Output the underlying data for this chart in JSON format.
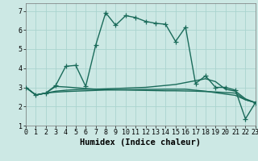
{
  "xlabel": "Humidex (Indice chaleur)",
  "background_color": "#cce8e4",
  "grid_color": "#aad4cf",
  "line_color": "#1a6b5a",
  "x_values": [
    0,
    1,
    2,
    3,
    4,
    5,
    6,
    7,
    8,
    9,
    10,
    11,
    12,
    13,
    14,
    15,
    16,
    17,
    18,
    19,
    20,
    21,
    22,
    23
  ],
  "series": [
    [
      3.0,
      2.6,
      2.7,
      3.1,
      4.1,
      4.15,
      3.05,
      5.2,
      6.9,
      6.25,
      6.75,
      6.65,
      6.45,
      6.35,
      6.3,
      5.4,
      6.15,
      3.2,
      3.6,
      3.0,
      3.0,
      2.85,
      1.35,
      2.2
    ],
    [
      3.0,
      2.6,
      2.7,
      2.8,
      2.85,
      2.88,
      2.9,
      2.9,
      2.92,
      2.94,
      2.96,
      2.98,
      3.0,
      3.05,
      3.1,
      3.15,
      3.25,
      3.35,
      3.45,
      3.3,
      2.9,
      2.8,
      2.4,
      2.2
    ],
    [
      3.0,
      2.6,
      2.7,
      2.75,
      2.78,
      2.8,
      2.82,
      2.84,
      2.86,
      2.87,
      2.88,
      2.88,
      2.89,
      2.89,
      2.9,
      2.9,
      2.9,
      2.85,
      2.8,
      2.72,
      2.65,
      2.58,
      2.35,
      2.2
    ],
    [
      3.0,
      2.6,
      2.7,
      3.05,
      3.02,
      2.98,
      2.94,
      2.9,
      2.88,
      2.87,
      2.86,
      2.85,
      2.84,
      2.83,
      2.82,
      2.82,
      2.81,
      2.8,
      2.78,
      2.76,
      2.73,
      2.7,
      2.35,
      2.2
    ]
  ],
  "xlim": [
    0,
    23
  ],
  "ylim": [
    1.0,
    7.4
  ],
  "yticks": [
    1,
    2,
    3,
    4,
    5,
    6,
    7
  ],
  "xticks": [
    0,
    1,
    2,
    3,
    4,
    5,
    6,
    7,
    8,
    9,
    10,
    11,
    12,
    13,
    14,
    15,
    16,
    17,
    18,
    19,
    20,
    21,
    22,
    23
  ],
  "marker": "+",
  "markersize": 4,
  "linewidth": 1.0,
  "xlabel_fontsize": 7.5,
  "tick_fontsize": 6.0
}
